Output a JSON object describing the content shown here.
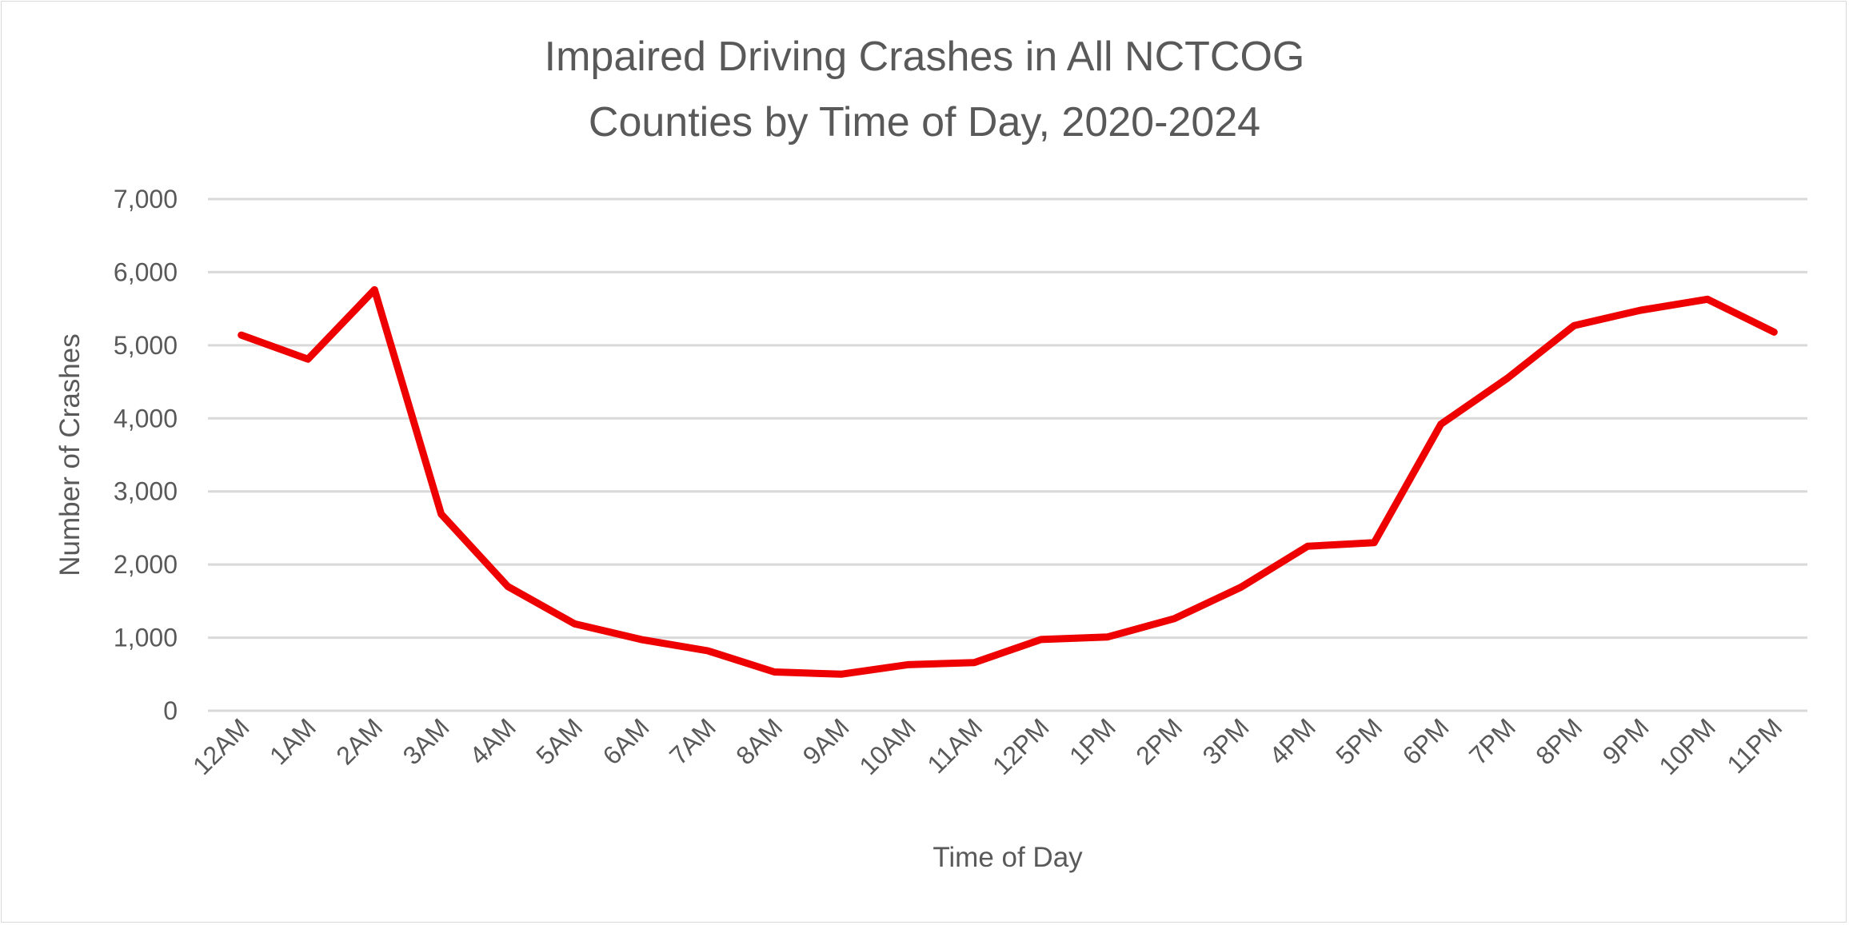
{
  "chart_data": {
    "type": "line",
    "title": [
      "Impaired Driving Crashes in All NCTCOG",
      "Counties by Time of Day, 2020-2024"
    ],
    "xlabel": "Time of Day",
    "ylabel": "Number of Crashes",
    "categories": [
      "12AM",
      "1AM",
      "2AM",
      "3AM",
      "4AM",
      "5AM",
      "6AM",
      "7AM",
      "8AM",
      "9AM",
      "10AM",
      "11AM",
      "12PM",
      "1PM",
      "2PM",
      "3PM",
      "4PM",
      "5PM",
      "6PM",
      "7PM",
      "8PM",
      "9PM",
      "10PM",
      "11PM"
    ],
    "series": [
      {
        "values": [
          5140,
          4810,
          5760,
          2690,
          1700,
          1190,
          975,
          820,
          530,
          500,
          630,
          660,
          975,
          1010,
          1260,
          1690,
          2250,
          2300,
          3920,
          4550,
          5270,
          5480,
          5630,
          5180
        ],
        "color": "#ee0000"
      }
    ],
    "ylim": [
      0,
      7000
    ],
    "yticks": [
      0,
      1000,
      2000,
      3000,
      4000,
      5000,
      6000,
      7000
    ],
    "ytick_labels": [
      "0",
      "1,000",
      "2,000",
      "3,000",
      "4,000",
      "5,000",
      "6,000",
      "7,000"
    ],
    "grid": "horizontal",
    "legend": "none",
    "colors": {
      "text": "#595959",
      "grid": "#d9d9d9",
      "line": "#ee0000"
    }
  }
}
